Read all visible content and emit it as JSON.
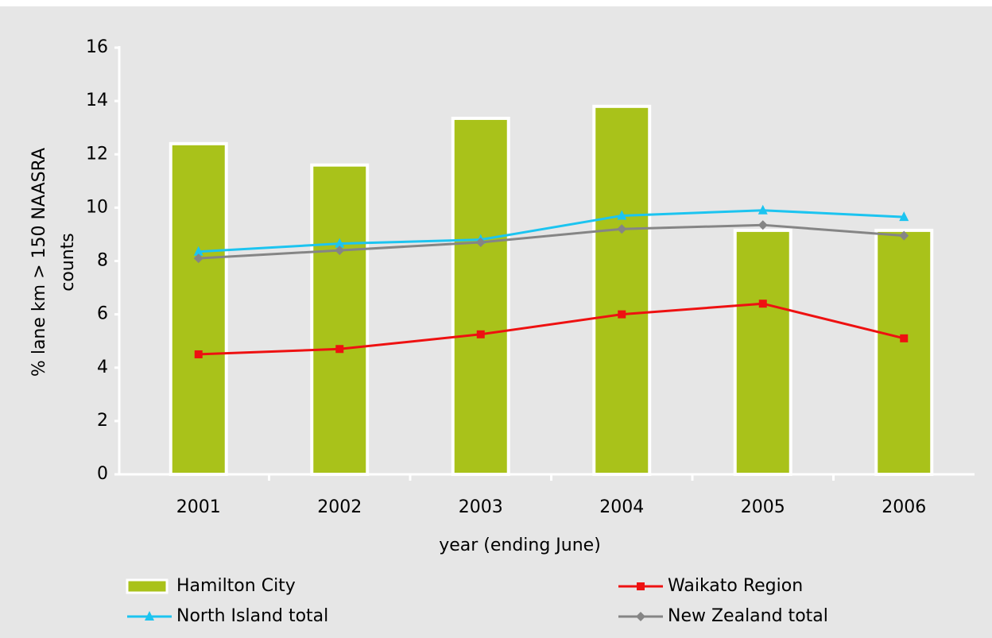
{
  "chart_data": {
    "type": "bar",
    "x_label": "year (ending June)",
    "y_label": [
      "% lane km > 150 NAASRA",
      "counts"
    ],
    "categories": [
      "2001",
      "2002",
      "2003",
      "2004",
      "2005",
      "2006"
    ],
    "series": [
      {
        "name": "Hamilton City",
        "type": "bar",
        "color": "#a9c21a",
        "values": [
          12.4,
          11.6,
          13.35,
          13.8,
          9.15,
          9.15
        ]
      },
      {
        "name": "Waikato Region",
        "type": "line",
        "marker": "square",
        "color": "#ee1111",
        "values": [
          4.5,
          4.7,
          5.25,
          6.0,
          6.4,
          5.1
        ]
      },
      {
        "name": "North Island total",
        "type": "line",
        "marker": "triangle",
        "color": "#1cc4f0",
        "values": [
          8.35,
          8.65,
          8.8,
          9.7,
          9.9,
          9.65
        ]
      },
      {
        "name": "New Zealand total",
        "type": "line",
        "marker": "diamond",
        "color": "#858585",
        "values": [
          8.1,
          8.4,
          8.7,
          9.2,
          9.35,
          8.95
        ]
      }
    ],
    "ylim": [
      0,
      16
    ],
    "yticks": [
      0,
      2,
      4,
      6,
      8,
      10,
      12,
      14,
      16
    ],
    "grid": false
  }
}
